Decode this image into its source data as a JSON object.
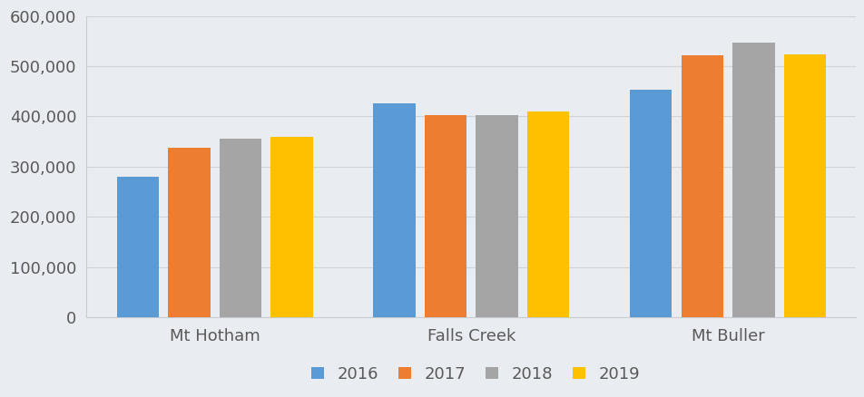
{
  "chart_data": {
    "type": "bar",
    "categories": [
      "Mt Hotham",
      "Falls Creek",
      "Mt Buller"
    ],
    "series": [
      {
        "name": "2016",
        "color": "#5b9bd5",
        "values": [
          280000,
          427000,
          453000
        ]
      },
      {
        "name": "2017",
        "color": "#ed7d31",
        "values": [
          338000,
          403000,
          521000
        ]
      },
      {
        "name": "2018",
        "color": "#a5a5a5",
        "values": [
          355000,
          402000,
          546000
        ]
      },
      {
        "name": "2019",
        "color": "#ffc000",
        "values": [
          360000,
          410000,
          523000
        ]
      }
    ],
    "ylim": [
      0,
      600000
    ],
    "yticks": [
      0,
      {
        "value": 100000,
        "label": "100,000"
      },
      {
        "value": 200000,
        "label": "200,000"
      },
      {
        "value": 300000,
        "label": "300,000"
      },
      {
        "value": 400000,
        "label": "400,000"
      },
      {
        "value": 500000,
        "label": "500,000"
      },
      {
        "value": 600000,
        "label": "600,000"
      }
    ],
    "grid": true,
    "legend": "lower center"
  }
}
